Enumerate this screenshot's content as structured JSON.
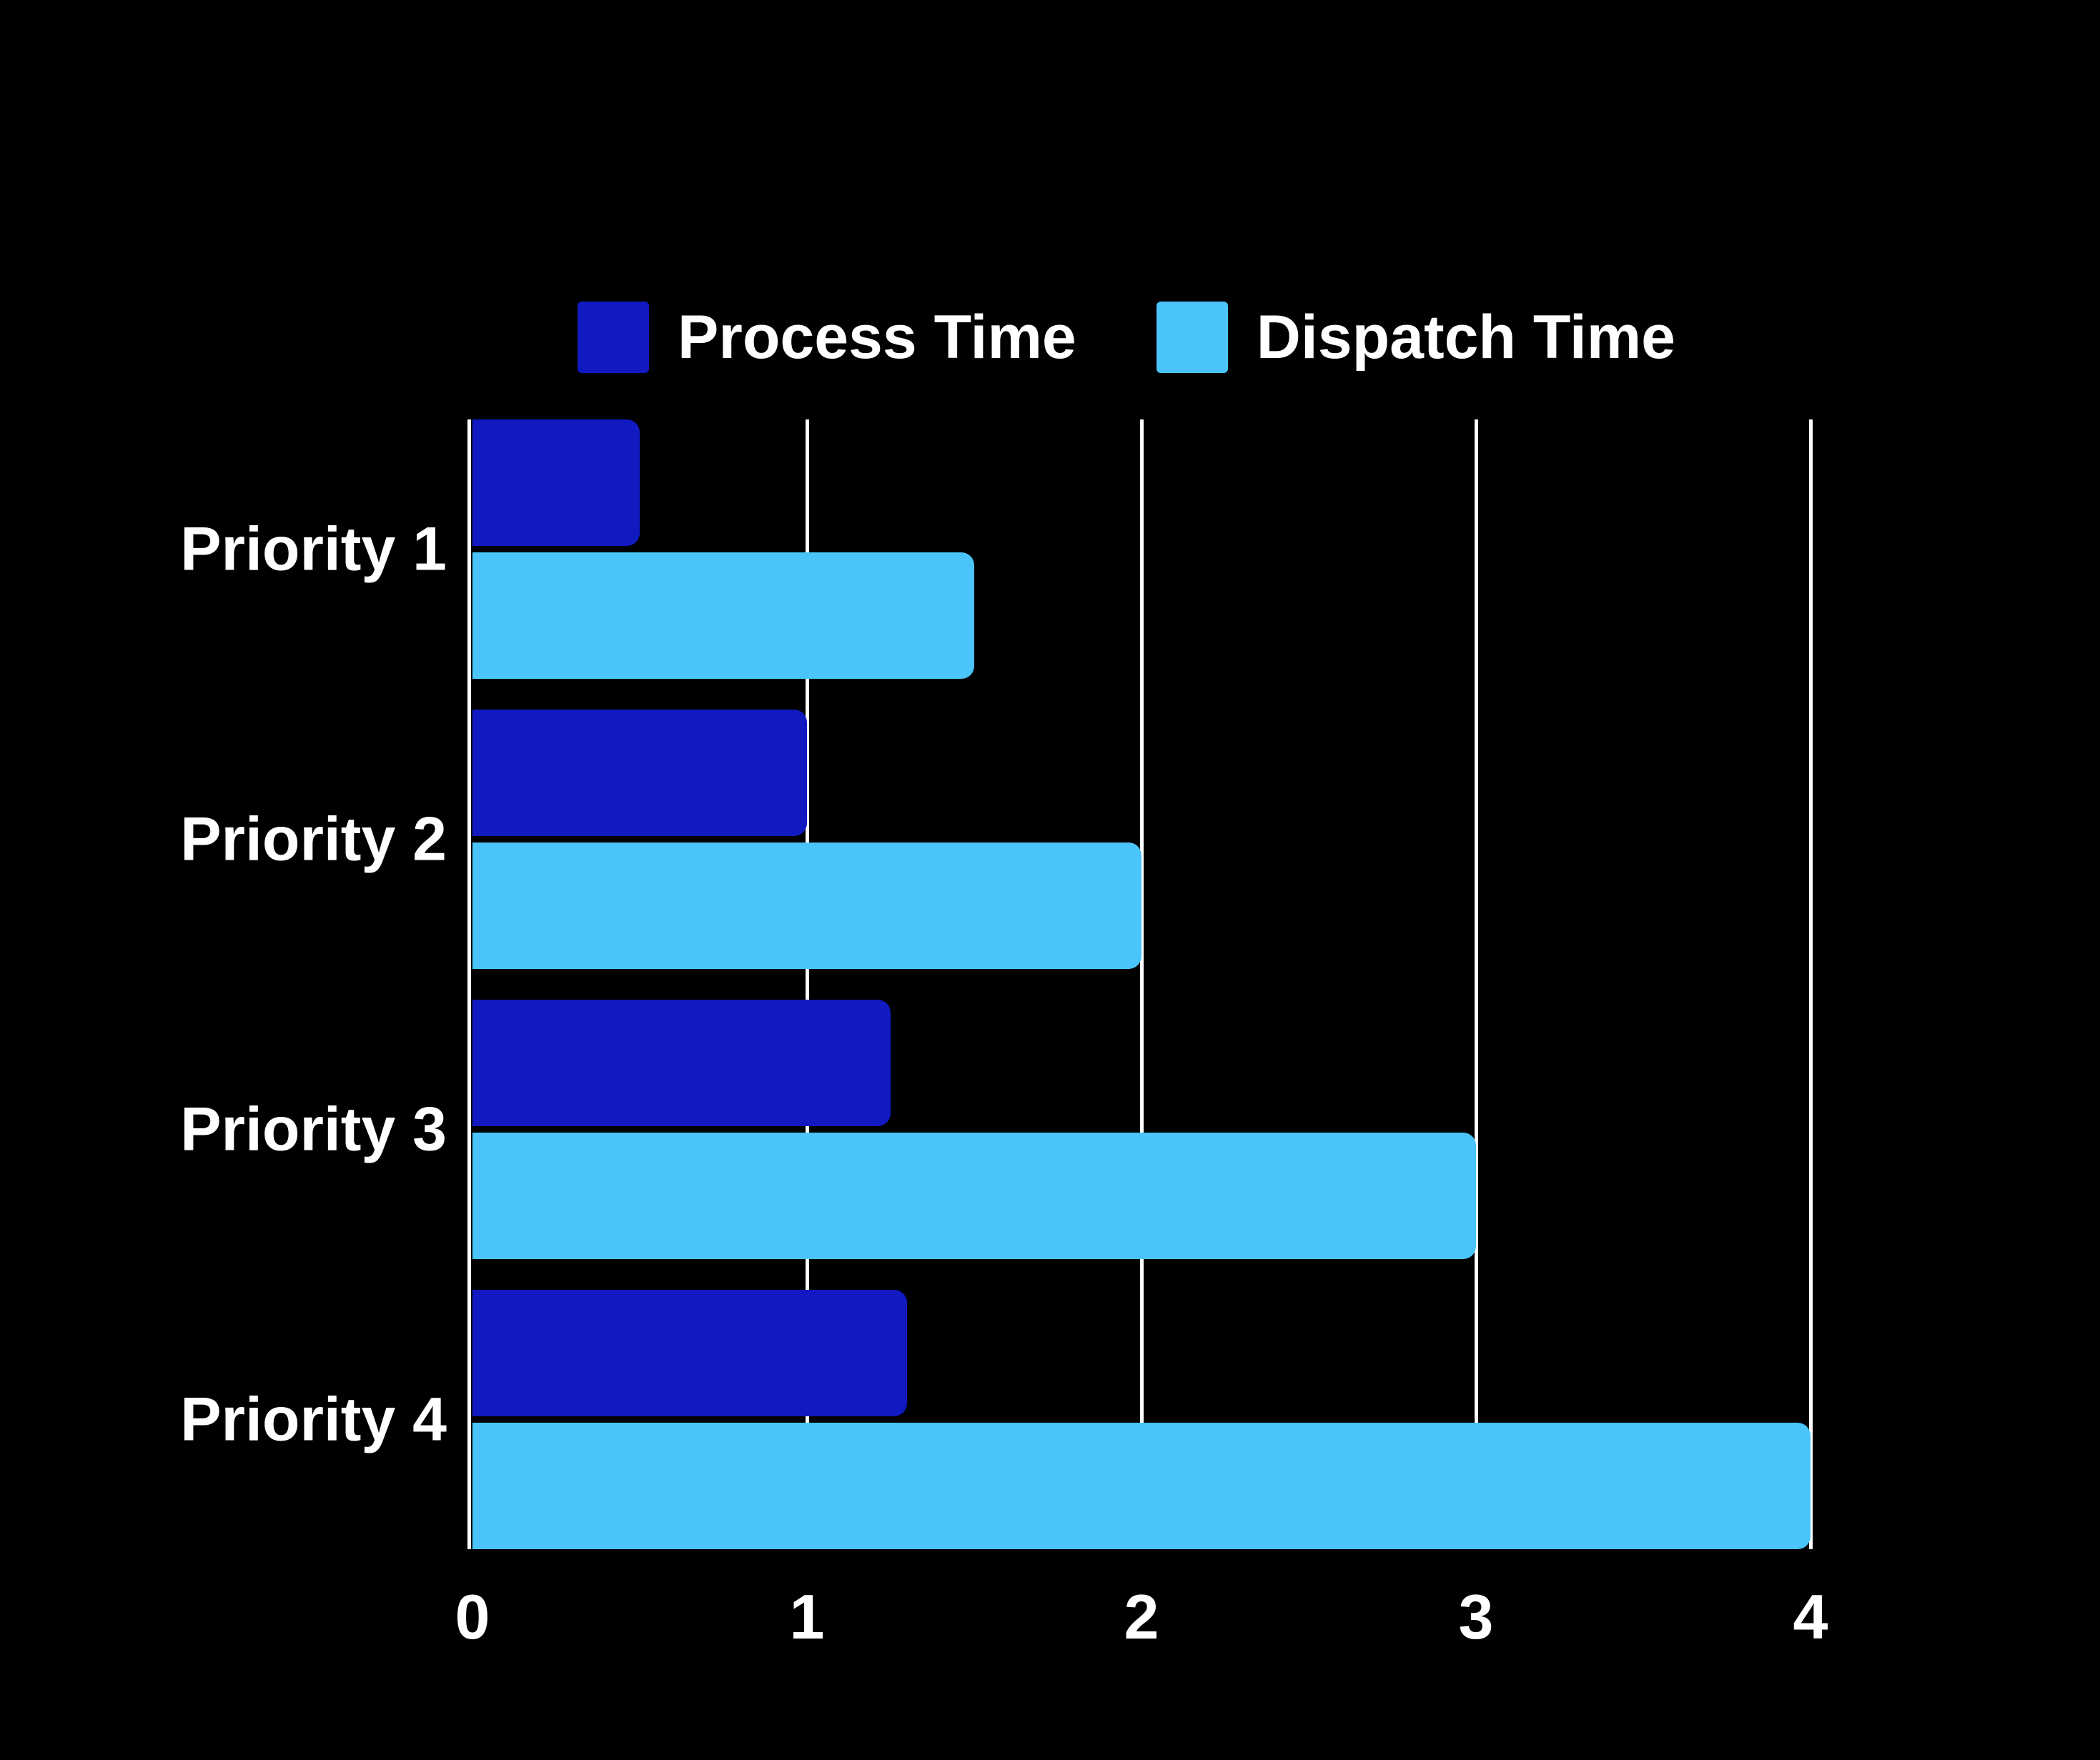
{
  "chart_data": {
    "type": "bar",
    "orientation": "horizontal",
    "title": "",
    "categories": [
      "Priority 1",
      "Priority 2",
      "Priority 3",
      "Priority 4"
    ],
    "series": [
      {
        "name": "Process Time",
        "color": "#1119C0",
        "values": [
          0.5,
          1.0,
          1.25,
          1.3
        ]
      },
      {
        "name": "Dispatch Time",
        "color": "#4BC4F9",
        "values": [
          1.5,
          2.0,
          3.0,
          4.0
        ]
      }
    ],
    "x_ticks": [
      0,
      1,
      2,
      3,
      4
    ],
    "xlim": [
      0,
      4
    ],
    "xlabel": "",
    "ylabel": "",
    "grid": "vertical white gridlines at 0,1,2,3,4",
    "gridline_color": "#FFFFFF",
    "legend_position": "top",
    "background_color": "#000000",
    "text_color": "#FFFFFF"
  }
}
